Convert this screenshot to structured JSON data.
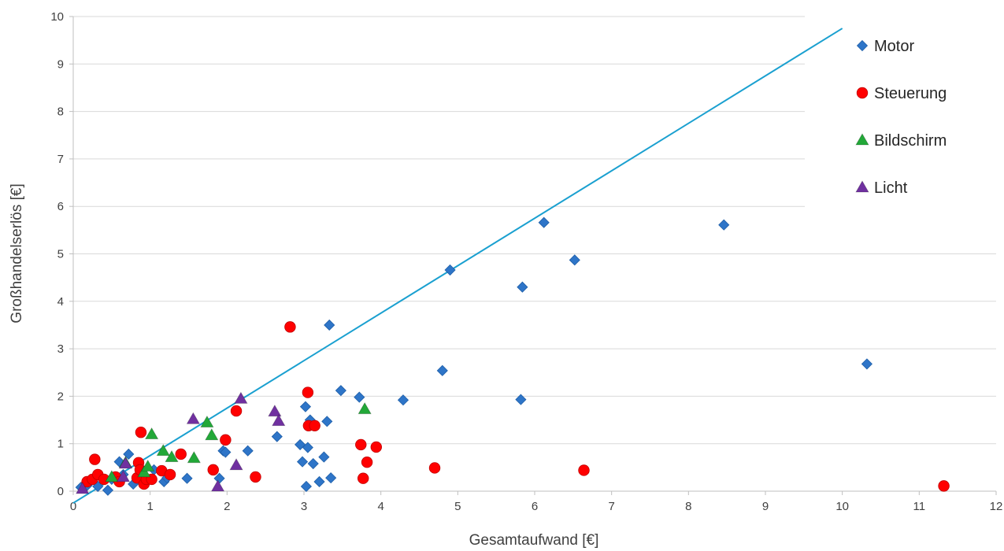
{
  "chart_data": {
    "type": "scatter",
    "title": "",
    "xlabel": "Gesamtaufwand [€]",
    "ylabel": "Großhandelserlös [€]",
    "xlim": [
      0,
      12
    ],
    "ylim": [
      0,
      10
    ],
    "xticks": [
      "0",
      "1",
      "2",
      "3",
      "4",
      "5",
      "6",
      "7",
      "8",
      "9",
      "10",
      "11",
      "12"
    ],
    "yticks": [
      "0",
      "1",
      "2",
      "3",
      "4",
      "5",
      "6",
      "7",
      "8",
      "9",
      "10"
    ],
    "grid": "horizontal",
    "legend_position": "top-right",
    "reference_line": {
      "x": [
        0,
        10
      ],
      "y": [
        -0.25,
        9.75
      ],
      "color": "#1aa0d0"
    },
    "series": [
      {
        "name": "Motor",
        "marker": "diamond",
        "color": "#2e75c8",
        "points": [
          [
            0.1,
            0.08
          ],
          [
            0.18,
            0.12
          ],
          [
            0.32,
            0.1
          ],
          [
            0.45,
            0.02
          ],
          [
            0.5,
            0.25
          ],
          [
            0.6,
            0.62
          ],
          [
            0.65,
            0.35
          ],
          [
            0.72,
            0.78
          ],
          [
            0.78,
            0.15
          ],
          [
            0.9,
            0.3
          ],
          [
            1.05,
            0.45
          ],
          [
            1.18,
            0.2
          ],
          [
            1.22,
            0.28
          ],
          [
            1.48,
            0.27
          ],
          [
            1.9,
            0.27
          ],
          [
            1.95,
            0.85
          ],
          [
            1.98,
            0.82
          ],
          [
            2.27,
            0.85
          ],
          [
            2.65,
            1.15
          ],
          [
            2.95,
            0.98
          ],
          [
            2.98,
            0.62
          ],
          [
            3.02,
            1.78
          ],
          [
            3.03,
            0.1
          ],
          [
            3.05,
            0.92
          ],
          [
            3.08,
            1.5
          ],
          [
            3.12,
            0.58
          ],
          [
            3.2,
            0.2
          ],
          [
            3.26,
            0.72
          ],
          [
            3.3,
            1.47
          ],
          [
            3.33,
            3.5
          ],
          [
            3.35,
            0.28
          ],
          [
            3.48,
            2.12
          ],
          [
            3.72,
            1.98
          ],
          [
            4.29,
            1.92
          ],
          [
            4.8,
            2.54
          ],
          [
            4.9,
            4.66
          ],
          [
            5.82,
            1.93
          ],
          [
            5.84,
            4.3
          ],
          [
            6.12,
            5.66
          ],
          [
            6.52,
            4.87
          ],
          [
            8.46,
            5.61
          ],
          [
            10.32,
            2.68
          ]
        ]
      },
      {
        "name": "Steuerung",
        "marker": "circle",
        "color": "#ff0000",
        "points": [
          [
            0.18,
            0.2
          ],
          [
            0.25,
            0.25
          ],
          [
            0.28,
            0.67
          ],
          [
            0.32,
            0.35
          ],
          [
            0.4,
            0.25
          ],
          [
            0.55,
            0.3
          ],
          [
            0.6,
            0.2
          ],
          [
            0.83,
            0.28
          ],
          [
            0.85,
            0.6
          ],
          [
            0.87,
            0.45
          ],
          [
            0.88,
            1.24
          ],
          [
            0.92,
            0.15
          ],
          [
            0.95,
            0.25
          ],
          [
            1.02,
            0.25
          ],
          [
            1.15,
            0.43
          ],
          [
            1.26,
            0.35
          ],
          [
            1.4,
            0.78
          ],
          [
            1.82,
            0.45
          ],
          [
            1.98,
            1.08
          ],
          [
            2.12,
            1.69
          ],
          [
            2.37,
            0.3
          ],
          [
            2.82,
            3.46
          ],
          [
            3.05,
            2.08
          ],
          [
            3.06,
            1.38
          ],
          [
            3.14,
            1.38
          ],
          [
            3.74,
            0.98
          ],
          [
            3.77,
            0.27
          ],
          [
            3.82,
            0.61
          ],
          [
            3.94,
            0.93
          ],
          [
            4.7,
            0.49
          ],
          [
            6.64,
            0.44
          ],
          [
            11.32,
            0.11
          ]
        ]
      },
      {
        "name": "Bildschirm",
        "marker": "triangle",
        "color": "#22a838",
        "points": [
          [
            0.5,
            0.3
          ],
          [
            0.68,
            0.6
          ],
          [
            0.92,
            0.4
          ],
          [
            0.97,
            0.52
          ],
          [
            1.02,
            1.2
          ],
          [
            1.17,
            0.85
          ],
          [
            1.28,
            0.72
          ],
          [
            1.57,
            0.7
          ],
          [
            1.74,
            1.45
          ],
          [
            1.8,
            1.18
          ],
          [
            3.79,
            1.73
          ]
        ]
      },
      {
        "name": "Licht",
        "marker": "triangle",
        "color": "#7030a0",
        "points": [
          [
            0.12,
            0.05
          ],
          [
            0.65,
            0.3
          ],
          [
            0.68,
            0.58
          ],
          [
            1.56,
            1.52
          ],
          [
            1.88,
            0.1
          ],
          [
            2.12,
            0.55
          ],
          [
            2.18,
            1.95
          ],
          [
            2.62,
            1.68
          ],
          [
            2.67,
            1.48
          ]
        ]
      }
    ]
  }
}
